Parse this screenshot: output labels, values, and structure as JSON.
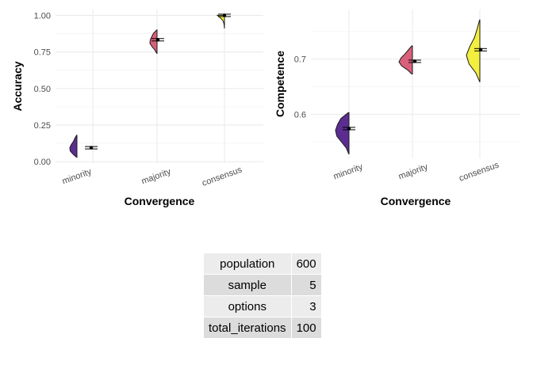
{
  "chart_data": [
    {
      "type": "violin",
      "xlabel": "Convergence",
      "ylabel": "Accuracy",
      "categories": [
        "minority",
        "majority",
        "consensus"
      ],
      "fill_colors": [
        "#5c2d91",
        "#d9607a",
        "#f2ef3f"
      ],
      "yticks": [
        "0.00",
        "0.25",
        "0.50",
        "0.75",
        "1.00"
      ],
      "ylim": [
        -0.01,
        1.04
      ],
      "grid": true,
      "distributions": [
        {
          "category": "minority",
          "min": 0.03,
          "max": 0.18,
          "density": [
            0.05,
            0.55,
            0.95,
            1.0,
            0.8,
            0.5,
            0.3,
            0.05
          ]
        },
        {
          "category": "majority",
          "min": 0.74,
          "max": 0.9,
          "density": [
            0.05,
            0.3,
            0.7,
            1.0,
            0.95,
            0.75,
            0.5,
            0.05
          ]
        },
        {
          "category": "consensus",
          "min": 0.91,
          "max": 1.0,
          "density": [
            0.0,
            0.02,
            0.05,
            0.1,
            0.2,
            0.4,
            0.7,
            1.0
          ]
        }
      ],
      "means": [
        0.095,
        0.833,
        1.0
      ]
    },
    {
      "type": "violin",
      "xlabel": "Convergence",
      "ylabel": "Competence",
      "categories": [
        "minority",
        "majority",
        "consensus"
      ],
      "fill_colors": [
        "#5c2d91",
        "#d9607a",
        "#f2ef3f"
      ],
      "yticks": [
        "0.6",
        "0.7"
      ],
      "ylim": [
        0.52,
        0.79
      ],
      "grid": true,
      "distributions": [
        {
          "category": "minority",
          "min": 0.528,
          "max": 0.603,
          "density": [
            0.02,
            0.2,
            0.55,
            0.9,
            1.0,
            0.85,
            0.6,
            0.05
          ]
        },
        {
          "category": "majority",
          "min": 0.673,
          "max": 0.724,
          "density": [
            0.05,
            0.35,
            0.8,
            1.0,
            0.85,
            0.55,
            0.3,
            0.05
          ]
        },
        {
          "category": "consensus",
          "min": 0.659,
          "max": 0.771,
          "density": [
            0.02,
            0.3,
            0.8,
            1.0,
            0.75,
            0.4,
            0.2,
            0.02
          ]
        }
      ],
      "means": [
        0.574,
        0.696,
        0.717
      ]
    }
  ],
  "parameters": [
    {
      "key": "population",
      "value": "600"
    },
    {
      "key": "sample",
      "value": "5"
    },
    {
      "key": "options",
      "value": "3"
    },
    {
      "key": "total_iterations",
      "value": "100"
    }
  ]
}
